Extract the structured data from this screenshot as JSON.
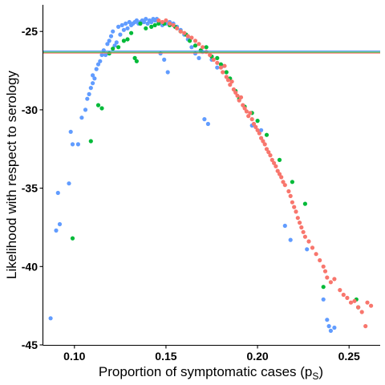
{
  "chart_data": {
    "type": "scatter",
    "xlabel": "Proportion of symptomatic cases (p",
    "xlabel_sub": "S",
    "xlabel_end": ")",
    "ylabel": "Likelihood with respect to serology",
    "xlim": [
      0.083,
      0.267
    ],
    "ylim": [
      -45.0,
      -23.3
    ],
    "xticks": [
      0.1,
      0.15,
      0.2,
      0.25
    ],
    "xtick_labels": [
      "0.10",
      "0.15",
      "0.20",
      "0.25"
    ],
    "yticks": [
      -25,
      -30,
      -35,
      -40,
      -45
    ],
    "ytick_labels": [
      "-25",
      "-30",
      "-35",
      "-40",
      "-45"
    ],
    "grid": false,
    "legend": "none",
    "hlines": [
      {
        "y": -26.25,
        "color": "#619CFF"
      },
      {
        "y": -26.32,
        "color": "#00BA38"
      },
      {
        "y": -26.38,
        "color": "#F8766D"
      }
    ],
    "series": [
      {
        "color": "#619CFF",
        "points": [
          [
            0.087,
            -43.3
          ],
          [
            0.09,
            -37.7
          ],
          [
            0.091,
            -35.3
          ],
          [
            0.092,
            -37.3
          ],
          [
            0.097,
            -34.7
          ],
          [
            0.098,
            -31.4
          ],
          [
            0.099,
            -32.2
          ],
          [
            0.102,
            -32.2
          ],
          [
            0.104,
            -30.5
          ],
          [
            0.106,
            -30.0
          ],
          [
            0.107,
            -29.3
          ],
          [
            0.108,
            -29.0
          ],
          [
            0.109,
            -28.6
          ],
          [
            0.11,
            -28.3
          ],
          [
            0.11,
            -27.8
          ],
          [
            0.111,
            -28.0
          ],
          [
            0.112,
            -27.4
          ],
          [
            0.113,
            -27.1
          ],
          [
            0.114,
            -26.9
          ],
          [
            0.115,
            -26.5
          ],
          [
            0.116,
            -26.2
          ],
          [
            0.117,
            -26.5
          ],
          [
            0.118,
            -25.8
          ],
          [
            0.119,
            -25.6
          ],
          [
            0.12,
            -25.3
          ],
          [
            0.121,
            -25.0
          ],
          [
            0.122,
            -25.9
          ],
          [
            0.123,
            -25.7
          ],
          [
            0.124,
            -24.7
          ],
          [
            0.125,
            -25.2
          ],
          [
            0.126,
            -24.6
          ],
          [
            0.127,
            -24.9
          ],
          [
            0.128,
            -24.5
          ],
          [
            0.129,
            -24.8
          ],
          [
            0.13,
            -24.4
          ],
          [
            0.131,
            -24.6
          ],
          [
            0.132,
            -24.5
          ],
          [
            0.133,
            -24.4
          ],
          [
            0.134,
            -24.3
          ],
          [
            0.135,
            -24.5
          ],
          [
            0.136,
            -24.4
          ],
          [
            0.137,
            -24.3
          ],
          [
            0.138,
            -24.4
          ],
          [
            0.139,
            -24.2
          ],
          [
            0.14,
            -24.5
          ],
          [
            0.141,
            -24.3
          ],
          [
            0.142,
            -24.4
          ],
          [
            0.143,
            -24.2
          ],
          [
            0.144,
            -24.3
          ],
          [
            0.145,
            -24.2
          ],
          [
            0.146,
            -24.4
          ],
          [
            0.147,
            -26.4
          ],
          [
            0.148,
            -24.6
          ],
          [
            0.149,
            -26.8
          ],
          [
            0.15,
            -24.5
          ],
          [
            0.151,
            -27.6
          ],
          [
            0.152,
            -24.4
          ],
          [
            0.154,
            -24.5
          ],
          [
            0.156,
            -24.7
          ],
          [
            0.158,
            -24.9
          ],
          [
            0.16,
            -25.2
          ],
          [
            0.162,
            -25.5
          ],
          [
            0.164,
            -26.0
          ],
          [
            0.166,
            -26.4
          ],
          [
            0.168,
            -26.7
          ],
          [
            0.17,
            -26.3
          ],
          [
            0.171,
            -30.6
          ],
          [
            0.173,
            -30.9
          ],
          [
            0.175,
            -26.8
          ],
          [
            0.178,
            -27.3
          ],
          [
            0.181,
            -27.2
          ],
          [
            0.197,
            -31.0
          ],
          [
            0.202,
            -31.3
          ],
          [
            0.215,
            -37.4
          ],
          [
            0.218,
            -38.3
          ],
          [
            0.227,
            -38.9
          ],
          [
            0.236,
            -42.1
          ],
          [
            0.238,
            -43.4
          ],
          [
            0.239,
            -43.8
          ],
          [
            0.24,
            -44.1
          ],
          [
            0.242,
            -43.9
          ]
        ]
      },
      {
        "color": "#00BA38",
        "points": [
          [
            0.099,
            -38.2
          ],
          [
            0.109,
            -32.0
          ],
          [
            0.113,
            -29.7
          ],
          [
            0.115,
            -29.9
          ],
          [
            0.119,
            -26.4
          ],
          [
            0.121,
            -26.1
          ],
          [
            0.124,
            -26.0
          ],
          [
            0.127,
            -25.6
          ],
          [
            0.129,
            -25.5
          ],
          [
            0.131,
            -25.1
          ],
          [
            0.133,
            -26.7
          ],
          [
            0.134,
            -26.9
          ],
          [
            0.136,
            -24.5
          ],
          [
            0.139,
            -24.8
          ],
          [
            0.142,
            -24.7
          ],
          [
            0.144,
            -24.6
          ],
          [
            0.146,
            -24.5
          ],
          [
            0.149,
            -24.5
          ],
          [
            0.152,
            -24.6
          ],
          [
            0.155,
            -24.7
          ],
          [
            0.158,
            -25.0
          ],
          [
            0.161,
            -25.2
          ],
          [
            0.163,
            -25.6
          ],
          [
            0.166,
            -25.9
          ],
          [
            0.169,
            -26.2
          ],
          [
            0.172,
            -26.0
          ],
          [
            0.175,
            -26.6
          ],
          [
            0.178,
            -26.7
          ],
          [
            0.18,
            -27.1
          ],
          [
            0.183,
            -27.6
          ],
          [
            0.185,
            -28.0
          ],
          [
            0.188,
            -28.8
          ],
          [
            0.19,
            -29.3
          ],
          [
            0.193,
            -29.8
          ],
          [
            0.197,
            -30.2
          ],
          [
            0.2,
            -30.7
          ],
          [
            0.205,
            -31.6
          ],
          [
            0.212,
            -33.2
          ],
          [
            0.219,
            -34.6
          ],
          [
            0.226,
            -36.0
          ],
          [
            0.236,
            -41.3
          ],
          [
            0.254,
            -42.1
          ],
          [
            0.255,
            -42.6
          ]
        ]
      },
      {
        "color": "#F8766D",
        "points": [
          [
            0.146,
            -24.3
          ],
          [
            0.148,
            -24.4
          ],
          [
            0.15,
            -24.3
          ],
          [
            0.152,
            -24.5
          ],
          [
            0.154,
            -24.6
          ],
          [
            0.156,
            -24.8
          ],
          [
            0.158,
            -25.0
          ],
          [
            0.16,
            -25.1
          ],
          [
            0.162,
            -25.3
          ],
          [
            0.164,
            -25.4
          ],
          [
            0.166,
            -25.6
          ],
          [
            0.168,
            -25.8
          ],
          [
            0.17,
            -26.0
          ],
          [
            0.172,
            -26.3
          ],
          [
            0.174,
            -26.5
          ],
          [
            0.176,
            -26.8
          ],
          [
            0.178,
            -27.0
          ],
          [
            0.18,
            -27.3
          ],
          [
            0.181,
            -27.6
          ],
          [
            0.182,
            -27.2
          ],
          [
            0.183,
            -27.9
          ],
          [
            0.184,
            -28.1
          ],
          [
            0.185,
            -28.4
          ],
          [
            0.186,
            -28.2
          ],
          [
            0.187,
            -28.7
          ],
          [
            0.188,
            -28.9
          ],
          [
            0.189,
            -29.1
          ],
          [
            0.19,
            -29.4
          ],
          [
            0.191,
            -29.2
          ],
          [
            0.192,
            -29.7
          ],
          [
            0.193,
            -29.9
          ],
          [
            0.194,
            -30.1
          ],
          [
            0.195,
            -30.4
          ],
          [
            0.196,
            -30.2
          ],
          [
            0.197,
            -30.6
          ],
          [
            0.198,
            -30.9
          ],
          [
            0.199,
            -31.1
          ],
          [
            0.2,
            -31.3
          ],
          [
            0.201,
            -31.5
          ],
          [
            0.202,
            -31.8
          ],
          [
            0.203,
            -32.0
          ],
          [
            0.204,
            -32.2
          ],
          [
            0.205,
            -32.5
          ],
          [
            0.206,
            -32.7
          ],
          [
            0.207,
            -32.9
          ],
          [
            0.208,
            -33.2
          ],
          [
            0.209,
            -33.4
          ],
          [
            0.21,
            -33.6
          ],
          [
            0.211,
            -33.9
          ],
          [
            0.212,
            -34.1
          ],
          [
            0.213,
            -34.3
          ],
          [
            0.214,
            -34.6
          ],
          [
            0.215,
            -34.8
          ],
          [
            0.217,
            -35.2
          ],
          [
            0.218,
            -35.5
          ],
          [
            0.219,
            -35.9
          ],
          [
            0.22,
            -36.2
          ],
          [
            0.221,
            -36.5
          ],
          [
            0.222,
            -36.9
          ],
          [
            0.223,
            -37.2
          ],
          [
            0.224,
            -37.5
          ],
          [
            0.225,
            -37.8
          ],
          [
            0.226,
            -38.1
          ],
          [
            0.228,
            -38.4
          ],
          [
            0.23,
            -38.8
          ],
          [
            0.232,
            -39.2
          ],
          [
            0.234,
            -39.6
          ],
          [
            0.236,
            -40.0
          ],
          [
            0.237,
            -40.3
          ],
          [
            0.238,
            -40.7
          ],
          [
            0.24,
            -41.0
          ],
          [
            0.242,
            -40.8
          ],
          [
            0.245,
            -41.5
          ],
          [
            0.247,
            -41.8
          ],
          [
            0.249,
            -42.0
          ],
          [
            0.251,
            -42.3
          ],
          [
            0.253,
            -42.2
          ],
          [
            0.255,
            -42.6
          ],
          [
            0.257,
            -42.9
          ],
          [
            0.259,
            -43.8
          ],
          [
            0.26,
            -42.3
          ],
          [
            0.262,
            -42.5
          ]
        ]
      }
    ]
  }
}
